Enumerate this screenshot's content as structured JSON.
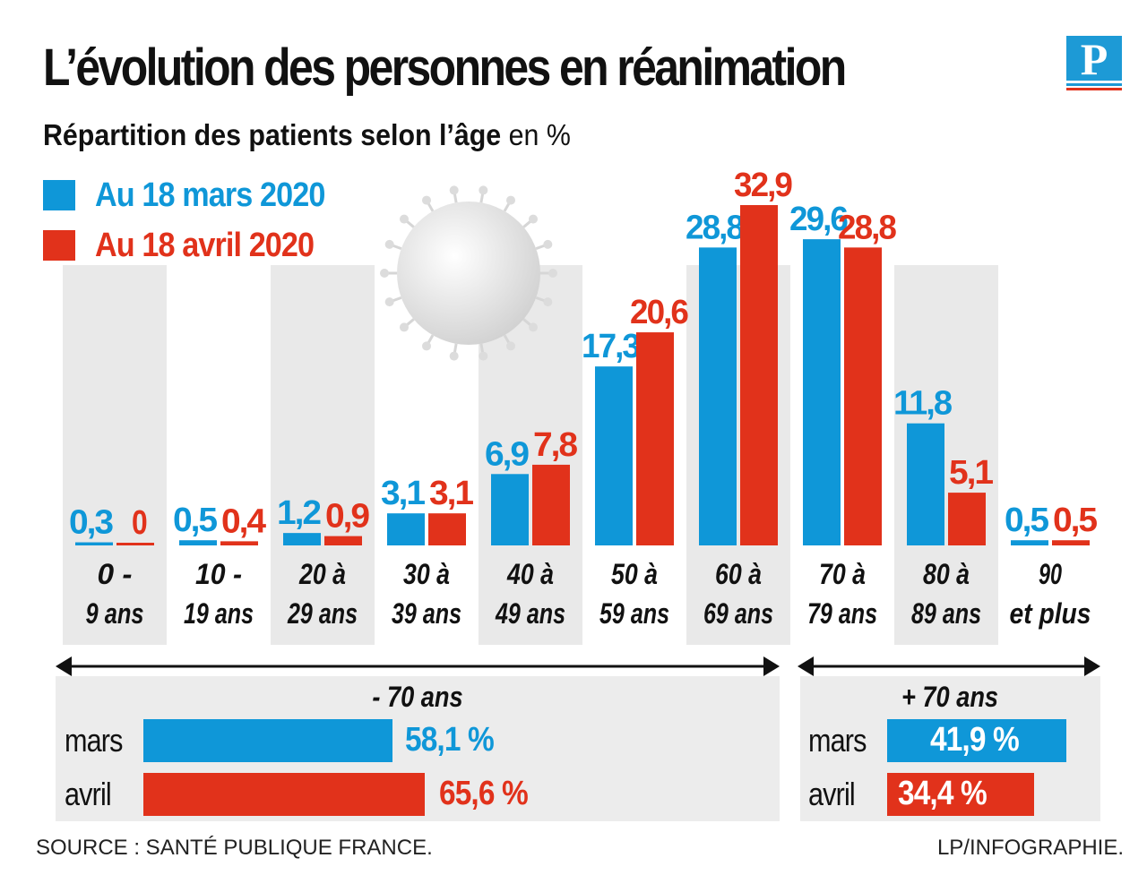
{
  "title": "L’évolution des personnes en réanimation",
  "subtitle_bold": "Répartition des patients selon l’âge",
  "subtitle_rest": "en %",
  "colors": {
    "march": "#0f97d8",
    "april": "#e1321b",
    "band": "#e9e9e9"
  },
  "chart_data": {
    "type": "bar",
    "categories": [
      [
        "0 -",
        "9 ans"
      ],
      [
        "10 -",
        "19 ans"
      ],
      [
        "20 à",
        "29 ans"
      ],
      [
        "30 à",
        "39 ans"
      ],
      [
        "40 à",
        "49 ans"
      ],
      [
        "50 à",
        "59 ans"
      ],
      [
        "60 à",
        "69 ans"
      ],
      [
        "70 à",
        "79 ans"
      ],
      [
        "80 à",
        "89 ans"
      ],
      [
        "90",
        "et plus"
      ]
    ],
    "series": [
      {
        "name": "Au 18 mars 2020",
        "values": [
          0.3,
          0.5,
          1.2,
          3.1,
          6.9,
          17.3,
          28.8,
          29.6,
          11.8,
          0.5
        ],
        "labels": [
          "0,3",
          "0,5",
          "1,2",
          "3,1",
          "6,9",
          "17,3",
          "28,8",
          "29,6",
          "11,8",
          "0,5"
        ]
      },
      {
        "name": "Au 18 avril 2020",
        "values": [
          0,
          0.4,
          0.9,
          3.1,
          7.8,
          20.6,
          32.9,
          28.8,
          5.1,
          0.5
        ],
        "labels": [
          "0",
          "0,4",
          "0,9",
          "3,1",
          "7,8",
          "20,6",
          "32,9",
          "28,8",
          "5,1",
          "0,5"
        ]
      }
    ],
    "ylim": [
      0,
      32.9
    ],
    "legend": "top-left"
  },
  "summary": {
    "under70": {
      "label": "- 70 ans",
      "rows": [
        {
          "name": "mars",
          "value": 58.1,
          "label": "58,1 %"
        },
        {
          "name": "avril",
          "value": 65.6,
          "label": "65,6 %"
        }
      ]
    },
    "over70": {
      "label": "+ 70 ans",
      "rows": [
        {
          "name": "mars",
          "value": 41.9,
          "label": "41,9 %"
        },
        {
          "name": "avril",
          "value": 34.4,
          "label": "34,4 %"
        }
      ]
    }
  },
  "source": "SOURCE : SANTÉ PUBLIQUE FRANCE.",
  "credit": "LP/INFOGRAPHIE.",
  "logo_letter": "P"
}
